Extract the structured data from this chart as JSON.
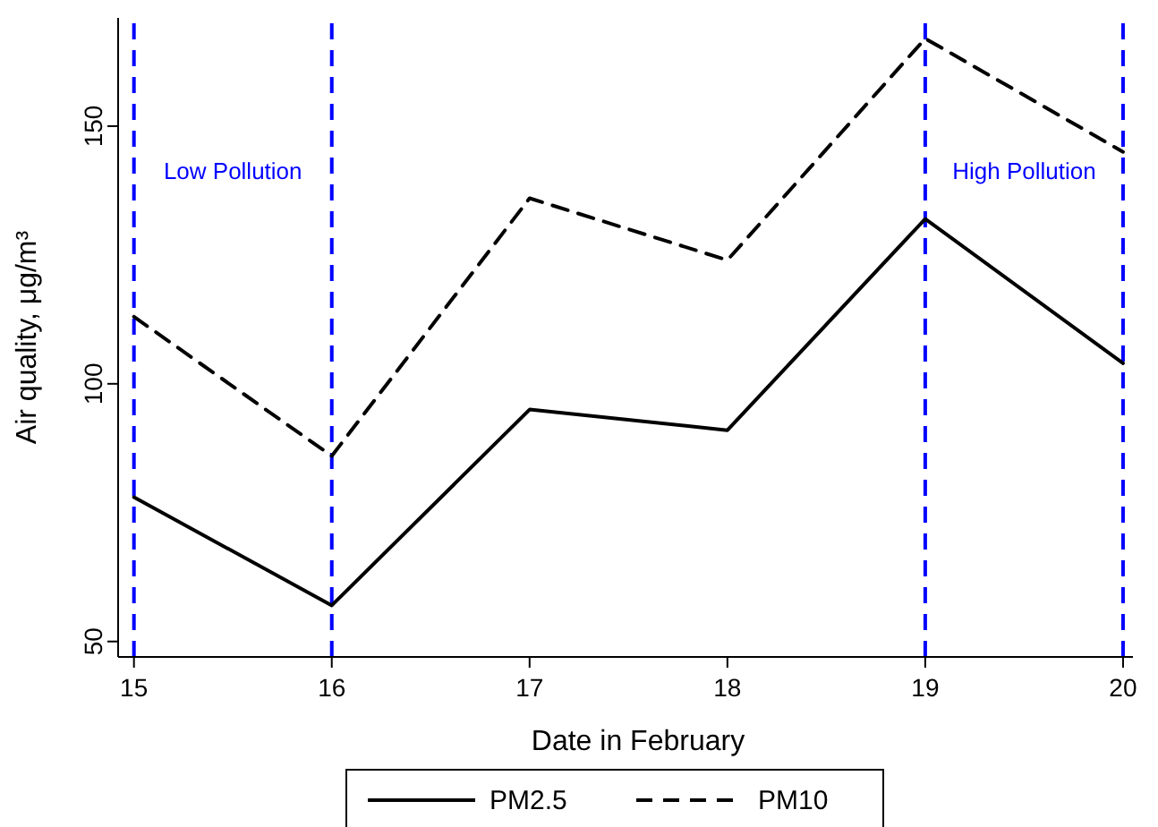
{
  "chart_data": {
    "type": "line",
    "xlabel": "Date in February",
    "ylabel": "Air quality, μg/m³",
    "x": [
      15,
      16,
      17,
      18,
      19,
      20
    ],
    "series": [
      {
        "name": "PM2.5",
        "color": "#000000",
        "line_style": "solid",
        "values": [
          78,
          57,
          95,
          91,
          132,
          104
        ]
      },
      {
        "name": "PM10",
        "color": "#000000",
        "line_style": "dashed",
        "values": [
          113,
          86,
          136,
          124,
          167,
          145
        ]
      }
    ],
    "xlim": [
      14.92,
      20.05
    ],
    "xticks": [
      15,
      16,
      17,
      18,
      19,
      20
    ],
    "ylim": [
      47,
      171
    ],
    "yticks": [
      50,
      100,
      150
    ],
    "ref_lines": [
      {
        "axis": "x",
        "value": 15,
        "color": "#0000ff",
        "line_style": "dashed"
      },
      {
        "axis": "x",
        "value": 16,
        "color": "#0000ff",
        "line_style": "dashed"
      },
      {
        "axis": "x",
        "value": 19,
        "color": "#0000ff",
        "line_style": "dashed"
      },
      {
        "axis": "x",
        "value": 20,
        "color": "#0000ff",
        "line_style": "dashed"
      }
    ],
    "annotations": [
      "Low Pollution",
      "High Pollution"
    ],
    "grid": false,
    "legend": "bottom",
    "marker": "none"
  }
}
